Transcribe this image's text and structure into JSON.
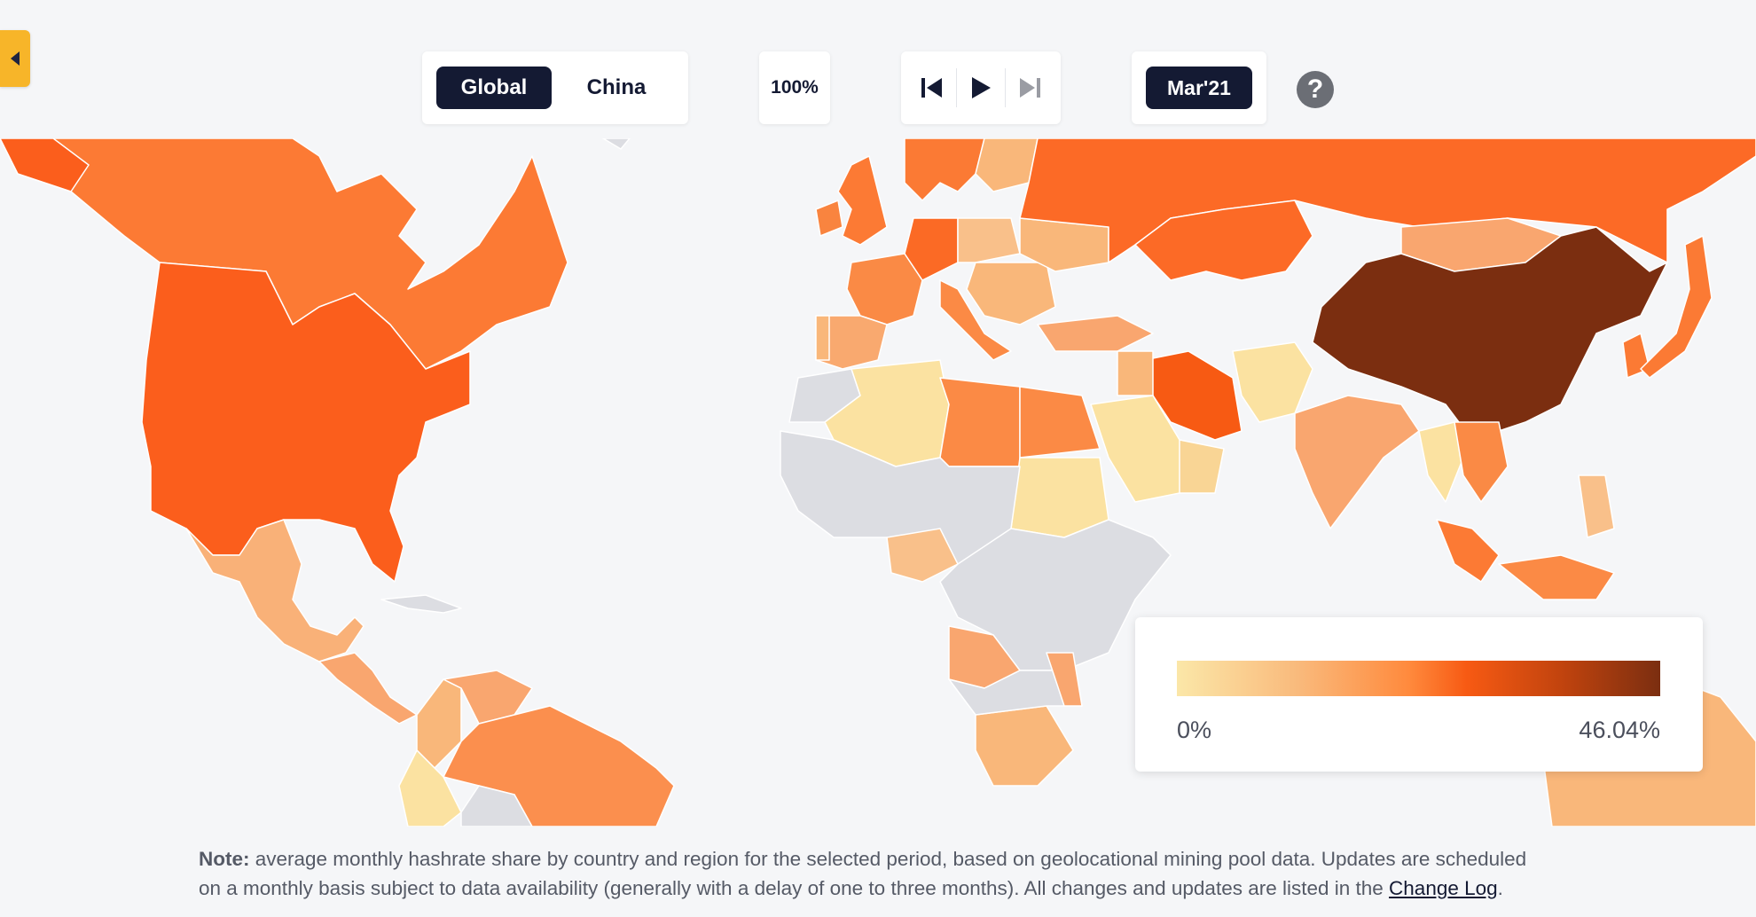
{
  "region_toggle": {
    "options": [
      "Global",
      "China"
    ],
    "selected": "Global"
  },
  "zoom_label": "100%",
  "player": {
    "icons": [
      "skip-start-icon",
      "play-icon",
      "skip-end-icon"
    ]
  },
  "month_label": "Mar'21",
  "help_label": "?",
  "legend": {
    "min_label": "0%",
    "max_label": "46.04%",
    "scale": [
      "#fbe7a8",
      "#f9ba7c",
      "#ff8a3d",
      "#f75a13",
      "#c0430e",
      "#7b2e10"
    ],
    "no_data_color": "#dcdde2"
  },
  "map_data": {
    "title": "",
    "max_share_percent": 46.04,
    "highest_share": "China"
  },
  "note": {
    "bold": "Note:",
    "text": " average monthly hashrate share by country and region for the selected period, based on geolocational mining pool data. Updates are scheduled on a monthly basis subject to data availability (generally with a delay of one to three months). All changes and updates are listed in the ",
    "link": "Change Log",
    "end": "."
  }
}
